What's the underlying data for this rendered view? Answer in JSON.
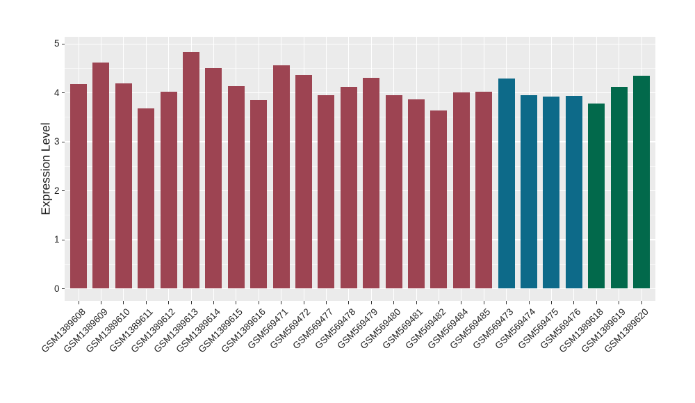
{
  "figure": {
    "background": "#FFFFFF"
  },
  "chart_data": {
    "type": "bar",
    "title": "",
    "xlabel": "",
    "ylabel": "Expression Level",
    "ylim": [
      0,
      5
    ],
    "ytick_labels": [
      "0",
      "1",
      "2",
      "3",
      "4",
      "5"
    ],
    "ytick_values": [
      0,
      1,
      2,
      3,
      4,
      5
    ],
    "minor_gridline_values": [
      0.5,
      1.5,
      2.5,
      3.5,
      4.5
    ],
    "grid": "on",
    "legend_position": "none",
    "panel_background": "#EBEBEB",
    "gridline_color": "#FFFFFF",
    "axis_text_color": "#1F1F1F",
    "tick_mark_color": "#333333",
    "palette": {
      "group1": "#9D4452",
      "group2": "#0D6A89",
      "group3": "#02694B"
    },
    "categories": [
      "GSM1389608",
      "GSM1389609",
      "GSM1389610",
      "GSM1389611",
      "GSM1389612",
      "GSM1389613",
      "GSM1389614",
      "GSM1389615",
      "GSM1389616",
      "GSM569471",
      "GSM569472",
      "GSM569477",
      "GSM569478",
      "GSM569479",
      "GSM569480",
      "GSM569481",
      "GSM569482",
      "GSM569484",
      "GSM569485",
      "GSM569473",
      "GSM569474",
      "GSM569475",
      "GSM569476",
      "GSM1389618",
      "GSM1389619",
      "GSM1389620"
    ],
    "values": [
      4.18,
      4.62,
      4.2,
      3.69,
      4.02,
      4.83,
      4.51,
      4.14,
      3.86,
      4.57,
      4.37,
      3.96,
      4.13,
      4.31,
      3.95,
      3.87,
      3.64,
      4.01,
      4.02,
      4.3,
      3.95,
      3.92,
      3.94,
      3.79,
      4.13,
      4.35
    ],
    "bar_groups": [
      "group1",
      "group1",
      "group1",
      "group1",
      "group1",
      "group1",
      "group1",
      "group1",
      "group1",
      "group1",
      "group1",
      "group1",
      "group1",
      "group1",
      "group1",
      "group1",
      "group1",
      "group1",
      "group1",
      "group2",
      "group2",
      "group2",
      "group2",
      "group3",
      "group3",
      "group3"
    ]
  }
}
